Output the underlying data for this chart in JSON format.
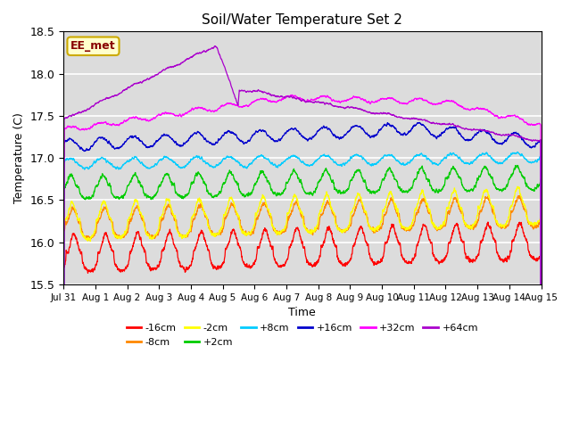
{
  "title": "Soil/Water Temperature Set 2",
  "xlabel": "Time",
  "ylabel": "Temperature (C)",
  "ylim": [
    15.5,
    18.5
  ],
  "background_color": "#dcdcdc",
  "annotation_text": "EE_met",
  "annotation_bg": "#ffffcc",
  "annotation_border": "#ccaa00",
  "grid_color": "white",
  "series": [
    {
      "label": "-16cm",
      "color": "#ff0000"
    },
    {
      "label": "-8cm",
      "color": "#ff8800"
    },
    {
      "label": "-2cm",
      "color": "#ffff00"
    },
    {
      "label": "+2cm",
      "color": "#00cc00"
    },
    {
      "label": "+8cm",
      "color": "#00ccff"
    },
    {
      "label": "+16cm",
      "color": "#0000cc"
    },
    {
      "label": "+32cm",
      "color": "#ff00ff"
    },
    {
      "label": "+64cm",
      "color": "#aa00cc"
    }
  ],
  "xtick_labels": [
    "Jul 31",
    "Aug 1",
    "Aug 2",
    "Aug 3",
    "Aug 4",
    "Aug 5",
    "Aug 6",
    "Aug 7",
    "Aug 8",
    "Aug 9",
    "Aug 10",
    "Aug 11",
    "Aug 12",
    "Aug 13",
    "Aug 14",
    "Aug 15"
  ],
  "xtick_positions": [
    0,
    1,
    2,
    3,
    4,
    5,
    6,
    7,
    8,
    9,
    10,
    11,
    12,
    13,
    14,
    15
  ]
}
